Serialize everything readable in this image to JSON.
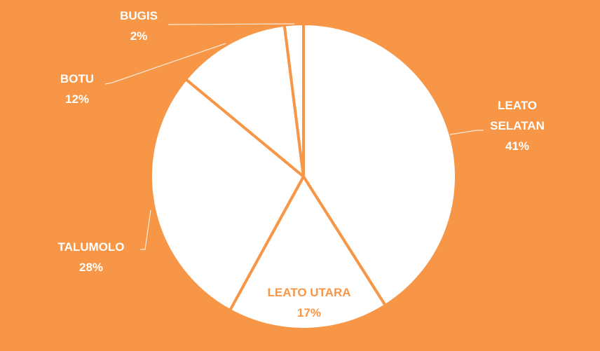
{
  "chart_data": {
    "type": "pie",
    "categories": [
      "LEATO SELATAN",
      "LEATO UTARA",
      "TALUMOLO",
      "BOTU",
      "BUGIS"
    ],
    "values": [
      41,
      17,
      28,
      12,
      2
    ],
    "value_labels": [
      "41%",
      "17%",
      "28%",
      "12%",
      "2%"
    ],
    "colors": [
      "#FFFFFF",
      "#FFFFFF",
      "#FFFFFF",
      "#FFFFFF",
      "#FFFFFF"
    ],
    "background": "#F79646"
  }
}
